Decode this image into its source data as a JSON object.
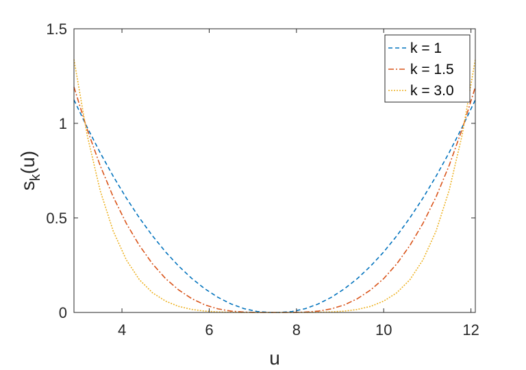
{
  "chart_data": {
    "type": "line",
    "xlabel": "u",
    "ylabel_main": "s",
    "ylabel_sub": "k",
    "ylabel_rest": "(u)",
    "xlim": [
      2.9,
      12.1
    ],
    "ylim": [
      0,
      1.5
    ],
    "xticks": [
      4,
      6,
      8,
      10,
      12
    ],
    "xtick_labels": [
      "4",
      "6",
      "8",
      "10",
      "12"
    ],
    "yticks": [
      0,
      0.5,
      1,
      1.5
    ],
    "ytick_labels": [
      "0",
      "0.5",
      "1",
      "1.5"
    ],
    "grid": false,
    "legend_position": "top-right",
    "x": [
      2.9,
      3.2,
      3.5,
      3.8,
      4.1,
      4.4,
      4.7,
      5.0,
      5.3,
      5.6,
      5.9,
      6.2,
      6.5,
      6.8,
      7.1,
      7.4,
      7.5,
      7.6,
      7.9,
      8.2,
      8.5,
      8.8,
      9.1,
      9.4,
      9.7,
      10.0,
      10.3,
      10.6,
      10.9,
      11.2,
      11.5,
      11.8,
      12.1
    ],
    "series": [
      {
        "name": "k = 1",
        "color": "#0072BD",
        "dash": "dashed",
        "values": [
          1.124,
          0.98,
          0.845,
          0.72,
          0.605,
          0.5,
          0.405,
          0.32,
          0.245,
          0.18,
          0.125,
          0.08,
          0.045,
          0.02,
          0.005,
          0.0,
          0.0,
          0.0,
          0.005,
          0.02,
          0.045,
          0.08,
          0.125,
          0.18,
          0.245,
          0.32,
          0.405,
          0.5,
          0.605,
          0.72,
          0.845,
          0.98,
          1.124
        ]
      },
      {
        "name": "k = 1.5",
        "color": "#D95319",
        "dash": "dashdot",
        "values": [
          1.192,
          0.97,
          0.777,
          0.611,
          0.471,
          0.354,
          0.257,
          0.179,
          0.119,
          0.073,
          0.04,
          0.019,
          0.007,
          0.002,
          0.0,
          0.0,
          0.0,
          0.0,
          0.0,
          0.002,
          0.007,
          0.019,
          0.04,
          0.073,
          0.119,
          0.179,
          0.257,
          0.354,
          0.471,
          0.611,
          0.777,
          0.97,
          1.192
        ]
      },
      {
        "name": "k = 3.0",
        "color": "#EDB120",
        "dash": "dotted",
        "values": [
          1.338,
          0.94,
          0.645,
          0.43,
          0.278,
          0.173,
          0.104,
          0.06,
          0.032,
          0.016,
          0.007,
          0.003,
          0.001,
          0.0,
          0.0,
          0.0,
          0.0,
          0.0,
          0.0,
          0.0,
          0.001,
          0.003,
          0.007,
          0.016,
          0.032,
          0.06,
          0.104,
          0.173,
          0.278,
          0.43,
          0.645,
          0.94,
          1.338
        ]
      }
    ]
  }
}
